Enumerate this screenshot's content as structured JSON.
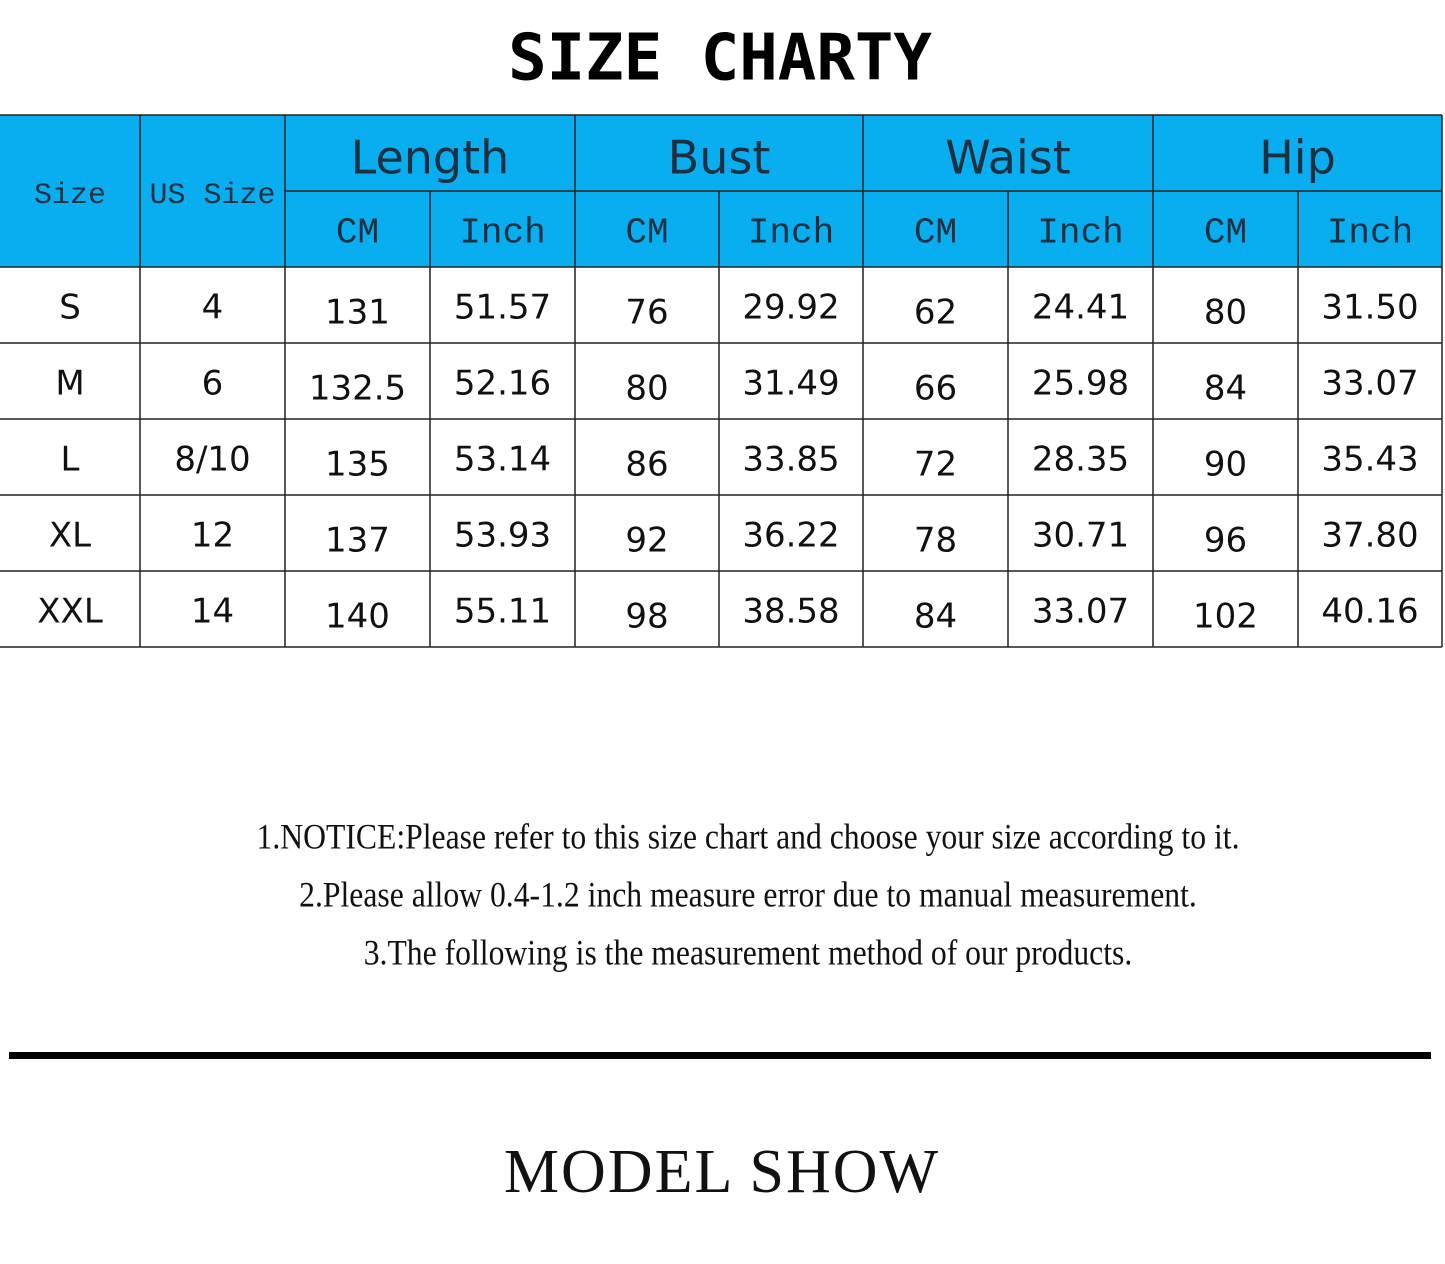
{
  "title": "SIZE CHARTY",
  "table": {
    "header": [
      "Size",
      "US Size"
    ],
    "groups": [
      "Length",
      "Bust",
      "Waist",
      "Hip"
    ],
    "subheaders": [
      "CM",
      "Inch",
      "CM",
      "Inch",
      "CM",
      "Inch",
      "CM",
      "Inch"
    ],
    "rows": [
      [
        "S",
        "4",
        "131",
        "51.57",
        "76",
        "29.92",
        "62",
        "24.41",
        "80",
        "31.50"
      ],
      [
        "M",
        "6",
        "132.5",
        "52.16",
        "80",
        "31.49",
        "66",
        "25.98",
        "84",
        "33.07"
      ],
      [
        "L",
        "8/10",
        "135",
        "53.14",
        "86",
        "33.85",
        "72",
        "28.35",
        "90",
        "35.43"
      ],
      [
        "XL",
        "12",
        "137",
        "53.93",
        "92",
        "36.22",
        "78",
        "30.71",
        "96",
        "37.80"
      ],
      [
        "XXL",
        "14",
        "140",
        "55.11",
        "98",
        "38.58",
        "84",
        "33.07",
        "102",
        "40.16"
      ]
    ]
  },
  "notices": [
    "1.NOTICE:Please refer to this size chart and choose your size according to it.",
    "2.Please allow 0.4-1.2 inch measure error due to manual measurement.",
    "3.The following is the measurement method of our products."
  ],
  "section_title": "MODEL SHOW"
}
